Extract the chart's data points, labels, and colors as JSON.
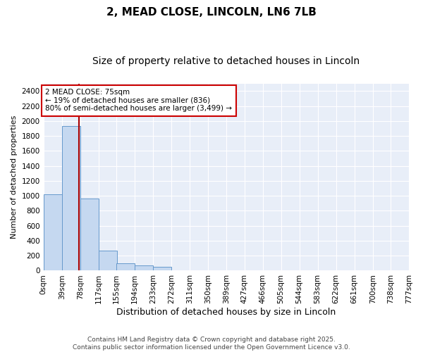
{
  "title": "2, MEAD CLOSE, LINCOLN, LN6 7LB",
  "subtitle": "Size of property relative to detached houses in Lincoln",
  "xlabel": "Distribution of detached houses by size in Lincoln",
  "ylabel": "Number of detached properties",
  "bar_color": "#c5d8f0",
  "bar_edge_color": "#6699cc",
  "background_color": "#e8eef8",
  "grid_color": "#ffffff",
  "fig_background": "#ffffff",
  "bin_labels": [
    "0sqm",
    "39sqm",
    "78sqm",
    "117sqm",
    "155sqm",
    "194sqm",
    "233sqm",
    "272sqm",
    "311sqm",
    "350sqm",
    "389sqm",
    "427sqm",
    "466sqm",
    "505sqm",
    "544sqm",
    "583sqm",
    "622sqm",
    "661sqm",
    "700sqm",
    "738sqm",
    "777sqm"
  ],
  "bin_edges": [
    0,
    39,
    78,
    117,
    155,
    194,
    233,
    272,
    311,
    350,
    389,
    427,
    466,
    505,
    544,
    583,
    622,
    661,
    700,
    738,
    777
  ],
  "bar_heights": [
    1020,
    1930,
    960,
    270,
    100,
    70,
    50,
    0,
    0,
    0,
    0,
    0,
    0,
    0,
    0,
    0,
    0,
    0,
    0,
    0
  ],
  "ylim": [
    0,
    2500
  ],
  "yticks": [
    0,
    200,
    400,
    600,
    800,
    1000,
    1200,
    1400,
    1600,
    1800,
    2000,
    2200,
    2400
  ],
  "property_line_x": 75,
  "property_line_color": "#aa0000",
  "annotation_line1": "2 MEAD CLOSE: 75sqm",
  "annotation_line2": "← 19% of detached houses are smaller (836)",
  "annotation_line3": "80% of semi-detached houses are larger (3,499) →",
  "annotation_box_color": "#cc0000",
  "footer_text": "Contains HM Land Registry data © Crown copyright and database right 2025.\nContains public sector information licensed under the Open Government Licence v3.0.",
  "title_fontsize": 11,
  "subtitle_fontsize": 10,
  "xlabel_fontsize": 9,
  "ylabel_fontsize": 8,
  "annot_fontsize": 7.5,
  "tick_fontsize": 7.5,
  "footer_fontsize": 6.5
}
